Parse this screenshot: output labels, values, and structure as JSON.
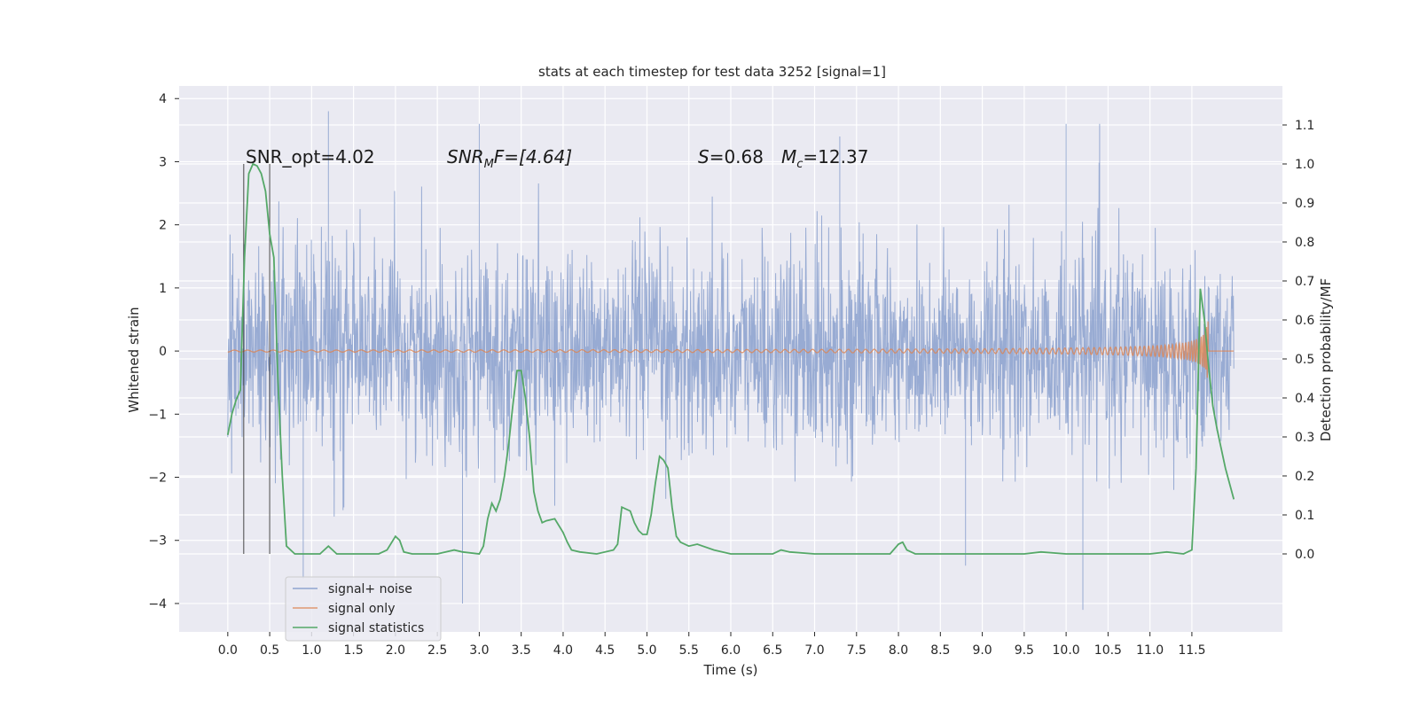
{
  "chart_data": {
    "type": "line",
    "title": "stats at each timestep for test data 3252 [signal=1]",
    "xlabel": "Time (s)",
    "ylabel": "Whitened strain",
    "ylabel_right": "Detection probability/MF",
    "xlim": [
      -0.58,
      12.58
    ],
    "ylim": [
      -4.45,
      4.2
    ],
    "ylim_right": [
      -0.2,
      1.2
    ],
    "x_ticks": [
      "0.0",
      "0.5",
      "1.0",
      "1.5",
      "2.0",
      "2.5",
      "3.0",
      "3.5",
      "4.0",
      "4.5",
      "5.0",
      "5.5",
      "6.0",
      "6.5",
      "7.0",
      "7.5",
      "8.0",
      "8.5",
      "9.0",
      "9.5",
      "10.0",
      "10.5",
      "11.0",
      "11.5"
    ],
    "y_ticks": [
      "4",
      "3",
      "2",
      "1",
      "0",
      "−1",
      "−2",
      "−3",
      "−4"
    ],
    "y_ticks_right": [
      "1.1",
      "1.0",
      "0.9",
      "0.8",
      "0.7",
      "0.6",
      "0.5",
      "0.4",
      "0.3",
      "0.2",
      "0.1",
      "0.0"
    ],
    "grid": true,
    "legend_position": "lower-left",
    "annotations": {
      "snr_opt": "SNR_opt=4.02",
      "snr_mf_main": "SNR",
      "snr_mf_sub": "M",
      "snr_mf_rest": "F=[4.64]",
      "s_sym": "S",
      "s_val": "=0.68",
      "mc_sym": "M",
      "mc_sub": "c",
      "mc_val": "=12.37"
    },
    "vertical_lines_x": [
      0.19,
      0.5
    ],
    "noise": {
      "name": "signal+ noise",
      "color": "#8fa4cf",
      "x_range": [
        0.0,
        12.0
      ],
      "envelope_typical": 1.6,
      "spikes": [
        [
          1.2,
          3.8
        ],
        [
          3.0,
          3.6
        ],
        [
          7.3,
          3.4
        ],
        [
          10.0,
          3.6
        ],
        [
          10.4,
          3.6
        ],
        [
          2.8,
          -4.0
        ],
        [
          10.2,
          -4.1
        ],
        [
          8.8,
          -3.4
        ],
        [
          0.9,
          -3.6
        ]
      ]
    },
    "signal": {
      "name": "signal only",
      "color": "#dd8452",
      "chirp_end": 11.7,
      "peak_amplitude": 0.55
    },
    "stats": {
      "name": "signal statistics",
      "color": "#55a868",
      "x": [
        0.0,
        0.05,
        0.1,
        0.15,
        0.2,
        0.25,
        0.3,
        0.35,
        0.4,
        0.45,
        0.5,
        0.55,
        0.6,
        0.65,
        0.7,
        0.8,
        1.0,
        1.1,
        1.2,
        1.3,
        1.5,
        1.8,
        1.9,
        2.0,
        2.05,
        2.1,
        2.2,
        2.5,
        2.7,
        2.8,
        3.0,
        3.05,
        3.1,
        3.15,
        3.2,
        3.25,
        3.3,
        3.35,
        3.4,
        3.45,
        3.5,
        3.55,
        3.6,
        3.65,
        3.7,
        3.75,
        3.8,
        3.9,
        4.0,
        4.05,
        4.1,
        4.2,
        4.4,
        4.6,
        4.65,
        4.7,
        4.8,
        4.85,
        4.9,
        4.95,
        5.0,
        5.05,
        5.1,
        5.15,
        5.2,
        5.25,
        5.3,
        5.35,
        5.4,
        5.5,
        5.6,
        5.8,
        6.0,
        6.5,
        6.6,
        6.7,
        7.0,
        7.5,
        7.9,
        8.0,
        8.05,
        8.1,
        8.2,
        8.5,
        9.0,
        9.5,
        9.7,
        10.0,
        10.5,
        11.0,
        11.2,
        11.4,
        11.5,
        11.55,
        11.6,
        11.65,
        11.7,
        11.75,
        11.8,
        11.9,
        12.0
      ],
      "y": [
        0.305,
        0.36,
        0.395,
        0.42,
        0.76,
        0.975,
        1.0,
        0.995,
        0.975,
        0.93,
        0.82,
        0.76,
        0.44,
        0.2,
        0.02,
        0.0,
        0.0,
        0.0,
        0.02,
        0.0,
        0.0,
        0.0,
        0.01,
        0.045,
        0.035,
        0.005,
        0.0,
        0.0,
        0.01,
        0.005,
        0.0,
        0.02,
        0.09,
        0.13,
        0.11,
        0.14,
        0.2,
        0.28,
        0.38,
        0.47,
        0.47,
        0.4,
        0.3,
        0.16,
        0.11,
        0.08,
        0.085,
        0.09,
        0.055,
        0.03,
        0.01,
        0.005,
        0.0,
        0.01,
        0.025,
        0.12,
        0.11,
        0.08,
        0.06,
        0.05,
        0.05,
        0.1,
        0.18,
        0.25,
        0.24,
        0.22,
        0.12,
        0.045,
        0.03,
        0.02,
        0.025,
        0.01,
        0.0,
        0.0,
        0.01,
        0.005,
        0.0,
        0.0,
        0.0,
        0.025,
        0.03,
        0.01,
        0.0,
        0.0,
        0.0,
        0.0,
        0.005,
        0.0,
        0.0,
        0.0,
        0.005,
        0.0,
        0.01,
        0.22,
        0.68,
        0.6,
        0.48,
        0.38,
        0.32,
        0.22,
        0.14
      ]
    }
  }
}
